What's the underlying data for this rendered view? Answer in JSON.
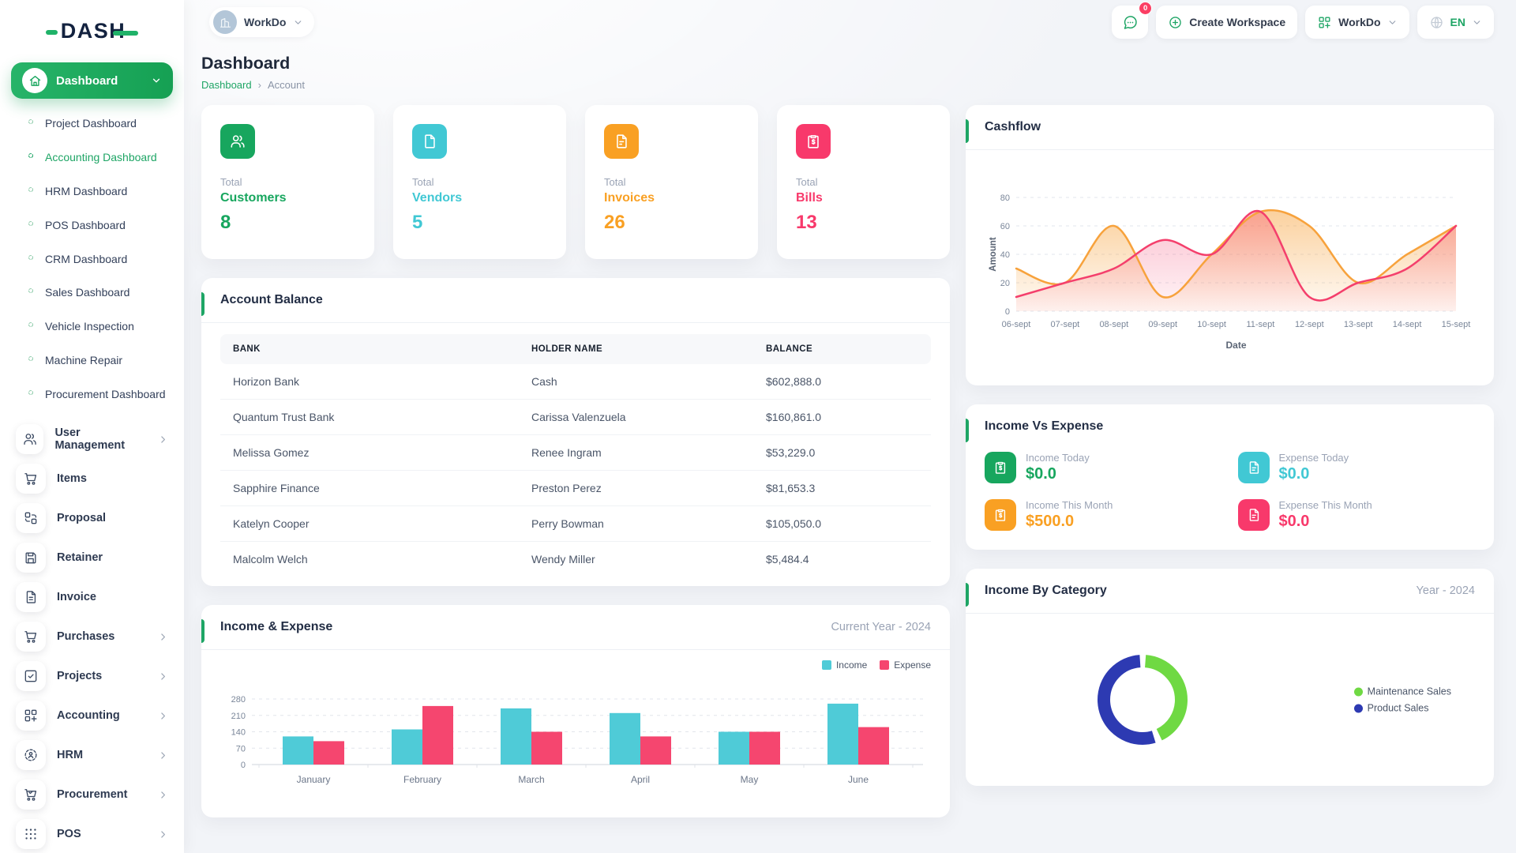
{
  "brand": {
    "logo_text": "DASH"
  },
  "colors": {
    "accent": "#1ea565",
    "green": "#17a65e",
    "cyan": "#41c8d4",
    "orange": "#f9a023",
    "pink": "#f8396b"
  },
  "header": {
    "workspace_switcher": {
      "label": "WorkDo",
      "icon": "building-icon"
    },
    "messages": {
      "icon": "chat-icon",
      "badge": "0"
    },
    "create_workspace": {
      "label": "Create Workspace",
      "icon": "plus-circle-icon"
    },
    "app_menu": {
      "label": "WorkDo",
      "icon": "grid-plus-icon"
    },
    "language": {
      "label": "EN",
      "icon": "globe-icon"
    }
  },
  "page": {
    "title": "Dashboard",
    "breadcrumb": [
      "Dashboard",
      "Account"
    ]
  },
  "sidebar": {
    "active_label": "Dashboard",
    "active_icon": "home-icon",
    "sub_items": [
      {
        "label": "Project Dashboard",
        "active": false
      },
      {
        "label": "Accounting Dashboard",
        "active": true
      },
      {
        "label": "HRM Dashboard",
        "active": false
      },
      {
        "label": "POS Dashboard",
        "active": false
      },
      {
        "label": "CRM Dashboard",
        "active": false
      },
      {
        "label": "Sales Dashboard",
        "active": false
      },
      {
        "label": "Vehicle Inspection",
        "active": false
      },
      {
        "label": "Machine Repair",
        "active": false
      },
      {
        "label": "Procurement Dashboard",
        "active": false
      }
    ],
    "items": [
      {
        "label": "User Management",
        "icon": "users-icon",
        "chevron": true
      },
      {
        "label": "Items",
        "icon": "cart-icon",
        "chevron": false
      },
      {
        "label": "Proposal",
        "icon": "swap-icon",
        "chevron": false
      },
      {
        "label": "Retainer",
        "icon": "save-icon",
        "chevron": false
      },
      {
        "label": "Invoice",
        "icon": "file-text-icon",
        "chevron": false
      },
      {
        "label": "Purchases",
        "icon": "cart-icon",
        "chevron": true
      },
      {
        "label": "Projects",
        "icon": "check-square-icon",
        "chevron": true
      },
      {
        "label": "Accounting",
        "icon": "grid-plus-icon",
        "chevron": true
      },
      {
        "label": "HRM",
        "icon": "people-circle-icon",
        "chevron": true
      },
      {
        "label": "Procurement",
        "icon": "cart-check-icon",
        "chevron": true
      },
      {
        "label": "POS",
        "icon": "dots-grid-icon",
        "chevron": true
      }
    ]
  },
  "stat_cards": [
    {
      "prefix": "Total",
      "label": "Customers",
      "value": "8",
      "color": "#17a65e",
      "icon": "users-icon"
    },
    {
      "prefix": "Total",
      "label": "Vendors",
      "value": "5",
      "color": "#41c8d4",
      "icon": "page-icon"
    },
    {
      "prefix": "Total",
      "label": "Invoices",
      "value": "26",
      "color": "#f9a023",
      "icon": "file-invoice-icon"
    },
    {
      "prefix": "Total",
      "label": "Bills",
      "value": "13",
      "color": "#f8396b",
      "icon": "clipboard-dollar-icon"
    }
  ],
  "account_balance": {
    "title": "Account Balance",
    "headers": [
      "BANK",
      "HOLDER NAME",
      "BALANCE"
    ],
    "rows": [
      [
        "Horizon Bank",
        "Cash",
        "$602,888.0"
      ],
      [
        "Quantum Trust Bank",
        "Carissa Valenzuela",
        "$160,861.0"
      ],
      [
        "Melissa Gomez",
        "Renee Ingram",
        "$53,229.0"
      ],
      [
        "Sapphire Finance",
        "Preston Perez",
        "$81,653.3"
      ],
      [
        "Katelyn Cooper",
        "Perry Bowman",
        "$105,050.0"
      ],
      [
        "Malcolm Welch",
        "Wendy Miller",
        "$5,484.4"
      ]
    ]
  },
  "cashflow": {
    "title": "Cashflow",
    "chart_data": {
      "type": "area",
      "x": [
        "06-sept",
        "07-sept",
        "08-sept",
        "09-sept",
        "10-sept",
        "11-sept",
        "12-sept",
        "13-sept",
        "14-sept",
        "15-sept"
      ],
      "series": [
        {
          "name": "series-orange",
          "color": "#f7a23c",
          "values": [
            30,
            20,
            60,
            10,
            40,
            70,
            60,
            20,
            40,
            60
          ]
        },
        {
          "name": "series-pink",
          "color": "#f43f6c",
          "values": [
            10,
            20,
            30,
            50,
            40,
            70,
            10,
            20,
            30,
            60
          ]
        }
      ],
      "xlabel": "Date",
      "ylabel": "Amount",
      "ylim": [
        0,
        80
      ],
      "yticks": [
        0,
        20,
        40,
        60,
        80
      ],
      "grid": "dashed-horizontal",
      "legend": "none",
      "smooth": true
    }
  },
  "income_vs_expense": {
    "title": "Income Vs Expense",
    "cells": [
      {
        "label": "Income Today",
        "value": "$0.0",
        "color": "#17a65e",
        "icon": "clipboard-dollar-icon"
      },
      {
        "label": "Expense Today",
        "value": "$0.0",
        "color": "#41c8d4",
        "icon": "page-lines-icon"
      },
      {
        "label": "Income This Month",
        "value": "$500.0",
        "color": "#f9a023",
        "icon": "clipboard-dollar-icon"
      },
      {
        "label": "Expense This Month",
        "value": "$0.0",
        "color": "#f8396b",
        "icon": "page-lines-icon"
      }
    ]
  },
  "income_expense": {
    "title": "Income & Expense",
    "period": "Current Year - 2024",
    "chart_data": {
      "type": "bar",
      "categories": [
        "January",
        "February",
        "March",
        "April",
        "May",
        "June"
      ],
      "series": [
        {
          "name": "Income",
          "color": "#4fcbd7",
          "values": [
            120,
            150,
            240,
            220,
            140,
            260
          ]
        },
        {
          "name": "Expense",
          "color": "#f5466f",
          "values": [
            100,
            250,
            140,
            120,
            140,
            160
          ]
        }
      ],
      "ylim": [
        0,
        280
      ],
      "yticks": [
        0,
        70,
        140,
        210,
        280
      ],
      "grid": "dashed-horizontal",
      "legend": "top-right"
    }
  },
  "income_by_category": {
    "title": "Income By Category",
    "period": "Year - 2024",
    "chart_data": {
      "type": "pie",
      "donut": true,
      "labels": [
        "Maintenance Sales",
        "Product Sales"
      ],
      "values": [
        44,
        56
      ],
      "colors": [
        "#6fd943",
        "#2d3ab2"
      ],
      "legend": "right"
    }
  }
}
